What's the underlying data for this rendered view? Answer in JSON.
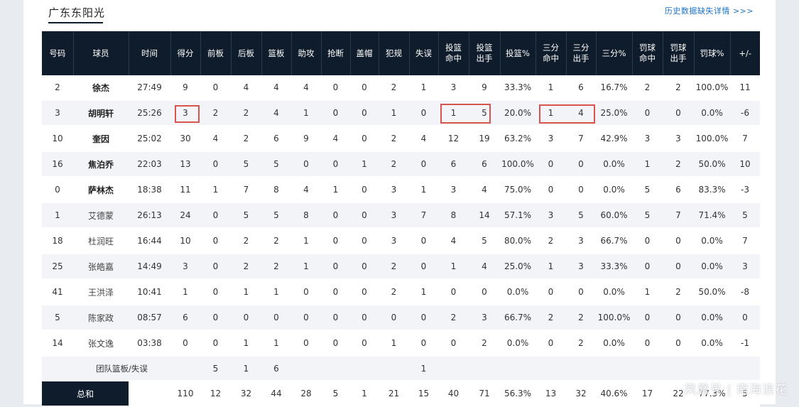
{
  "team": {
    "title": "广东东阳光"
  },
  "history_link": "历史数据缺失详情 >>>",
  "columns": [
    "号码",
    "球员",
    "时间",
    "得分",
    "前板",
    "后板",
    "篮板",
    "助攻",
    "抢断",
    "盖帽",
    "犯规",
    "失误",
    "投篮命中",
    "投篮出手",
    "投篮%",
    "三分命中",
    "三分出手",
    "三分%",
    "罚球命中",
    "罚球出手",
    "罚球%",
    "+/-"
  ],
  "players": [
    {
      "no": "2",
      "name": "徐杰",
      "time": "27:49",
      "pts": "9",
      "oreb": "0",
      "dreb": "4",
      "reb": "4",
      "ast": "4",
      "stl": "0",
      "blk": "0",
      "pf": "2",
      "tov": "1",
      "fgm": "3",
      "fga": "9",
      "fgp": "33.3%",
      "tpm": "1",
      "tpa": "6",
      "tpp": "16.7%",
      "ftm": "2",
      "fta": "2",
      "ftp": "100.0%",
      "pm": "11"
    },
    {
      "no": "3",
      "name": "胡明轩",
      "time": "25:26",
      "pts": "3",
      "oreb": "2",
      "dreb": "2",
      "reb": "4",
      "ast": "1",
      "stl": "0",
      "blk": "0",
      "pf": "1",
      "tov": "0",
      "fgm": "1",
      "fga": "5",
      "fgp": "20.0%",
      "tpm": "1",
      "tpa": "4",
      "tpp": "25.0%",
      "ftm": "0",
      "fta": "0",
      "ftp": "0.0%",
      "pm": "-6"
    },
    {
      "no": "10",
      "name": "奎因",
      "time": "25:02",
      "pts": "30",
      "oreb": "4",
      "dreb": "2",
      "reb": "6",
      "ast": "9",
      "stl": "4",
      "blk": "0",
      "pf": "2",
      "tov": "4",
      "fgm": "12",
      "fga": "19",
      "fgp": "63.2%",
      "tpm": "3",
      "tpa": "7",
      "tpp": "42.9%",
      "ftm": "3",
      "fta": "3",
      "ftp": "100.0%",
      "pm": "7"
    },
    {
      "no": "16",
      "name": "焦泊乔",
      "time": "22:03",
      "pts": "13",
      "oreb": "0",
      "dreb": "5",
      "reb": "5",
      "ast": "0",
      "stl": "0",
      "blk": "1",
      "pf": "2",
      "tov": "0",
      "fgm": "6",
      "fga": "6",
      "fgp": "100.0%",
      "tpm": "0",
      "tpa": "0",
      "tpp": "0.0%",
      "ftm": "1",
      "fta": "2",
      "ftp": "50.0%",
      "pm": "10"
    },
    {
      "no": "0",
      "name": "萨林杰",
      "time": "18:38",
      "pts": "11",
      "oreb": "1",
      "dreb": "7",
      "reb": "8",
      "ast": "4",
      "stl": "1",
      "blk": "0",
      "pf": "3",
      "tov": "1",
      "fgm": "3",
      "fga": "4",
      "fgp": "75.0%",
      "tpm": "0",
      "tpa": "0",
      "tpp": "0.0%",
      "ftm": "5",
      "fta": "6",
      "ftp": "83.3%",
      "pm": "-3"
    },
    {
      "no": "1",
      "name": "艾德蒙",
      "time": "26:13",
      "pts": "24",
      "oreb": "0",
      "dreb": "5",
      "reb": "5",
      "ast": "8",
      "stl": "0",
      "blk": "0",
      "pf": "3",
      "tov": "7",
      "fgm": "8",
      "fga": "14",
      "fgp": "57.1%",
      "tpm": "3",
      "tpa": "5",
      "tpp": "60.0%",
      "ftm": "5",
      "fta": "7",
      "ftp": "71.4%",
      "pm": "5"
    },
    {
      "no": "18",
      "name": "杜润旺",
      "time": "16:44",
      "pts": "10",
      "oreb": "0",
      "dreb": "2",
      "reb": "2",
      "ast": "1",
      "stl": "0",
      "blk": "0",
      "pf": "3",
      "tov": "0",
      "fgm": "4",
      "fga": "5",
      "fgp": "80.0%",
      "tpm": "2",
      "tpa": "3",
      "tpp": "66.7%",
      "ftm": "0",
      "fta": "0",
      "ftp": "0.0%",
      "pm": "7"
    },
    {
      "no": "25",
      "name": "张皓嘉",
      "time": "14:49",
      "pts": "3",
      "oreb": "0",
      "dreb": "2",
      "reb": "2",
      "ast": "1",
      "stl": "0",
      "blk": "0",
      "pf": "2",
      "tov": "0",
      "fgm": "1",
      "fga": "4",
      "fgp": "25.0%",
      "tpm": "1",
      "tpa": "3",
      "tpp": "33.3%",
      "ftm": "0",
      "fta": "0",
      "ftp": "0.0%",
      "pm": "3"
    },
    {
      "no": "41",
      "name": "王洪泽",
      "time": "10:41",
      "pts": "1",
      "oreb": "0",
      "dreb": "1",
      "reb": "1",
      "ast": "0",
      "stl": "0",
      "blk": "0",
      "pf": "2",
      "tov": "1",
      "fgm": "0",
      "fga": "0",
      "fgp": "0.0%",
      "tpm": "0",
      "tpa": "0",
      "tpp": "0.0%",
      "ftm": "1",
      "fta": "2",
      "ftp": "50.0%",
      "pm": "-8"
    },
    {
      "no": "5",
      "name": "陈家政",
      "time": "08:57",
      "pts": "6",
      "oreb": "0",
      "dreb": "0",
      "reb": "0",
      "ast": "0",
      "stl": "0",
      "blk": "0",
      "pf": "0",
      "tov": "0",
      "fgm": "2",
      "fga": "3",
      "fgp": "66.7%",
      "tpm": "2",
      "tpa": "2",
      "tpp": "100.0%",
      "ftm": "0",
      "fta": "0",
      "ftp": "0.0%",
      "pm": "0"
    },
    {
      "no": "14",
      "name": "张文逸",
      "time": "03:38",
      "pts": "0",
      "oreb": "0",
      "dreb": "1",
      "reb": "1",
      "ast": "0",
      "stl": "0",
      "blk": "0",
      "pf": "1",
      "tov": "0",
      "fgm": "0",
      "fga": "2",
      "fgp": "0.0%",
      "tpm": "0",
      "tpa": "2",
      "tpp": "0.0%",
      "ftm": "0",
      "fta": "0",
      "ftp": "0.0%",
      "pm": "-1"
    }
  ],
  "team_row": {
    "label": "团队篮板/失误",
    "oreb": "5",
    "dreb": "1",
    "reb": "6",
    "tov": "1"
  },
  "total_row": {
    "label": "总和",
    "pts": "110",
    "oreb": "12",
    "dreb": "32",
    "reb": "44",
    "ast": "28",
    "stl": "5",
    "blk": "1",
    "pf": "21",
    "tov": "15",
    "fgm": "40",
    "fga": "71",
    "fgp": "56.3%",
    "tpm": "13",
    "tpa": "32",
    "tpp": "40.6%",
    "ftm": "17",
    "fta": "22",
    "ftp": "77.3%",
    "pm": "5"
  },
  "watermark": "凤凰号 | 南海浪花",
  "colors": {
    "header_bg": "#0f1c2b",
    "highlight": "#d9534f",
    "link": "#1a73c8",
    "row_alt": "#f2f4f7"
  }
}
